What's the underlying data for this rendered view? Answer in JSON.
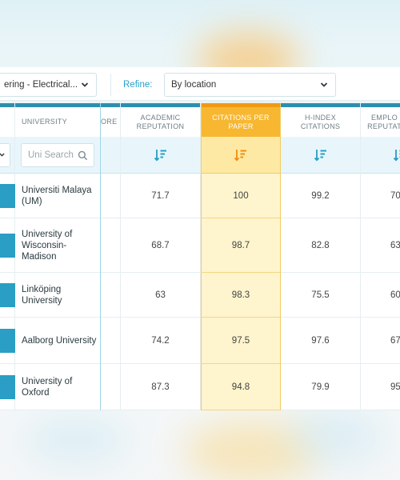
{
  "filters": {
    "subject_value": "ering - Electrical...",
    "refine_label": "Refine:",
    "location_value": "By location"
  },
  "columns": {
    "rank": "",
    "university": "UNIVERSITY",
    "overall_score": "ORE",
    "academic_reputation": "ACADEMIC REPUTATION",
    "citations_per_paper": "CITATIONS PER PAPER",
    "h_index_citations": "H-INDEX CITATIONS",
    "employer_reputation": "EMPLO REPUTAT"
  },
  "search": {
    "placeholder": "Uni Search"
  },
  "rows": [
    {
      "university": "Universiti Malaya (UM)",
      "academic": "71.7",
      "citations": "100",
      "hindex": "99.2",
      "employer": "70"
    },
    {
      "university": "University of Wisconsin-Madison",
      "academic": "68.7",
      "citations": "98.7",
      "hindex": "82.8",
      "employer": "63"
    },
    {
      "university": "Linköping University",
      "academic": "63",
      "citations": "98.3",
      "hindex": "75.5",
      "employer": "60"
    },
    {
      "university": "Aalborg University",
      "academic": "74.2",
      "citations": "97.5",
      "hindex": "97.6",
      "employer": "67"
    },
    {
      "university": "University of Oxford",
      "academic": "87.3",
      "citations": "94.8",
      "hindex": "79.9",
      "employer": "95"
    }
  ],
  "icons": {
    "sort": "sort-descending-icon",
    "search": "search-icon",
    "dropdown": "chevron-down-icon"
  },
  "colors": {
    "accent_blue": "#2a9ec4",
    "highlight_orange": "#f7b731",
    "highlight_yellow": "#fef4cd"
  }
}
